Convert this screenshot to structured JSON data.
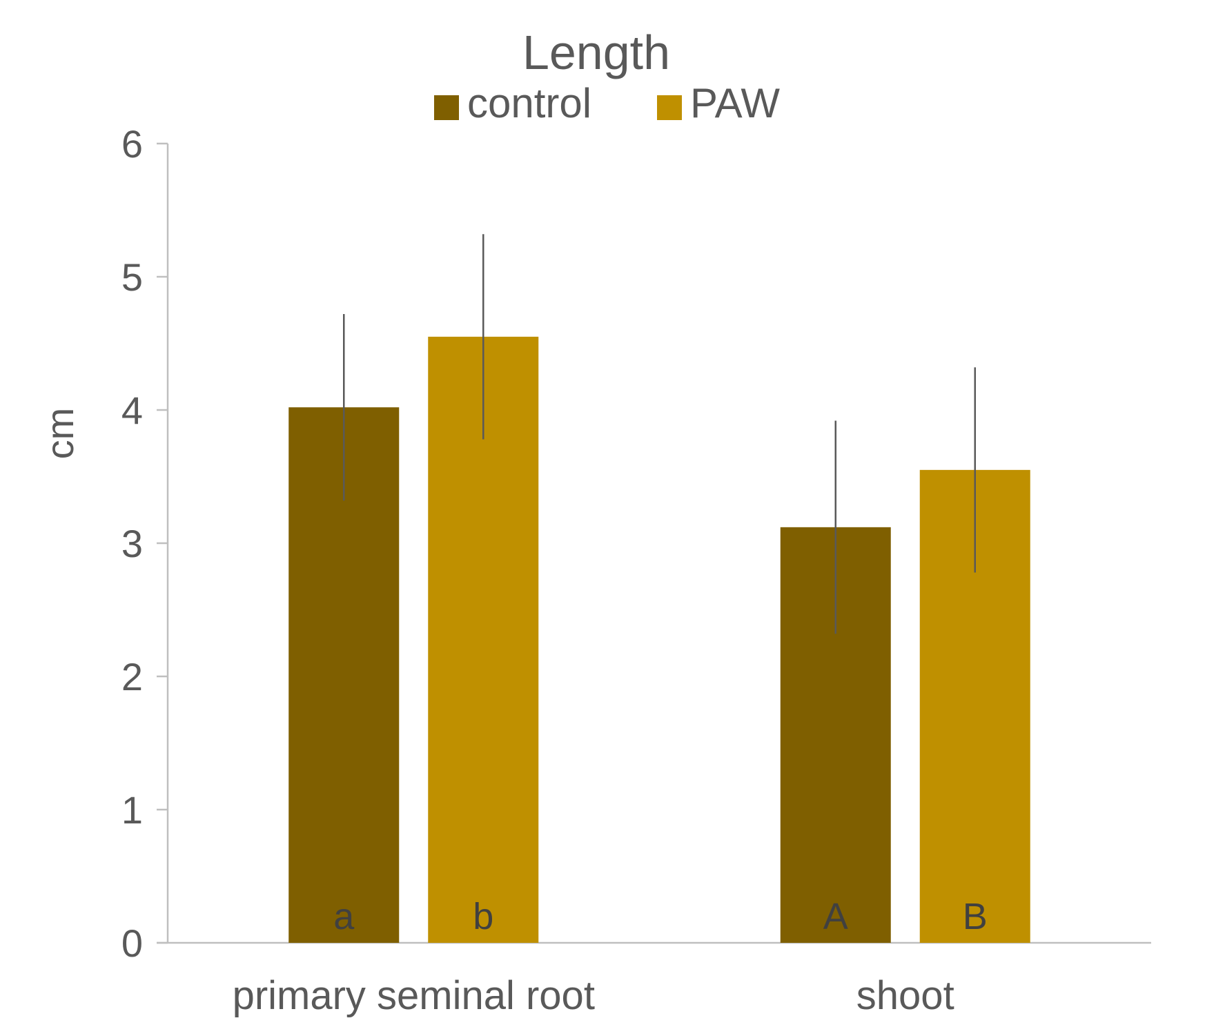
{
  "chart_data": {
    "type": "bar",
    "title": "Length",
    "ylabel": "cm",
    "xlabel": "",
    "ylim": [
      0,
      6
    ],
    "yticks": [
      0,
      1,
      2,
      3,
      4,
      5,
      6
    ],
    "categories": [
      "primary seminal root",
      "shoot"
    ],
    "legend_position": "top-center",
    "grid": false,
    "series": [
      {
        "name": "control",
        "color": "#7f5f00",
        "values": [
          4.02,
          3.12
        ],
        "errors": [
          0.7,
          0.8
        ],
        "labels": [
          "a",
          "A"
        ]
      },
      {
        "name": "PAW",
        "color": "#bf9000",
        "values": [
          4.55,
          3.55
        ],
        "errors": [
          0.77,
          0.77
        ],
        "labels": [
          "b",
          "B"
        ]
      }
    ]
  }
}
